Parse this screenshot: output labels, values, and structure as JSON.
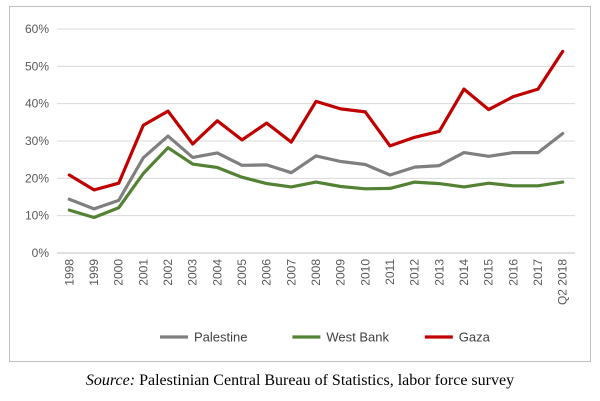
{
  "chart_data": {
    "type": "line",
    "x": [
      "1998",
      "1999",
      "2000",
      "2001",
      "2002",
      "2003",
      "2004",
      "2005",
      "2006",
      "2007",
      "2008",
      "2009",
      "2010",
      "2011",
      "2012",
      "2013",
      "2014",
      "2015",
      "2016",
      "2017",
      "Q2 2018"
    ],
    "series": [
      {
        "name": "Palestine",
        "color": "#7f7f7f",
        "values": [
          14.4,
          11.8,
          14.1,
          25.5,
          31.3,
          25.6,
          26.8,
          23.5,
          23.6,
          21.5,
          26.0,
          24.5,
          23.7,
          20.9,
          23.0,
          23.4,
          26.9,
          25.9,
          26.9,
          26.9,
          32.0
        ]
      },
      {
        "name": "West Bank",
        "color": "#548235",
        "values": [
          11.5,
          9.5,
          12.1,
          21.3,
          28.2,
          23.8,
          22.9,
          20.3,
          18.6,
          17.7,
          19.0,
          17.8,
          17.2,
          17.3,
          19.0,
          18.6,
          17.7,
          18.7,
          18.0,
          18.0,
          19.0
        ]
      },
      {
        "name": "Gaza",
        "color": "#c00000",
        "values": [
          20.9,
          16.9,
          18.7,
          34.2,
          38.0,
          29.2,
          35.4,
          30.3,
          34.8,
          29.7,
          40.6,
          38.6,
          37.8,
          28.7,
          31.0,
          32.6,
          43.9,
          38.4,
          41.9,
          43.9,
          54.0
        ]
      }
    ],
    "ylim": [
      0,
      60
    ],
    "y_ticks": [
      0,
      10,
      20,
      30,
      40,
      50,
      60
    ],
    "y_tick_labels": [
      "0%",
      "10%",
      "20%",
      "30%",
      "40%",
      "50%",
      "60%"
    ],
    "grid": true,
    "legend_position": "bottom"
  },
  "caption": {
    "label": "Source:",
    "text": " Palestinian Central Bureau of Statistics, labor force survey"
  }
}
